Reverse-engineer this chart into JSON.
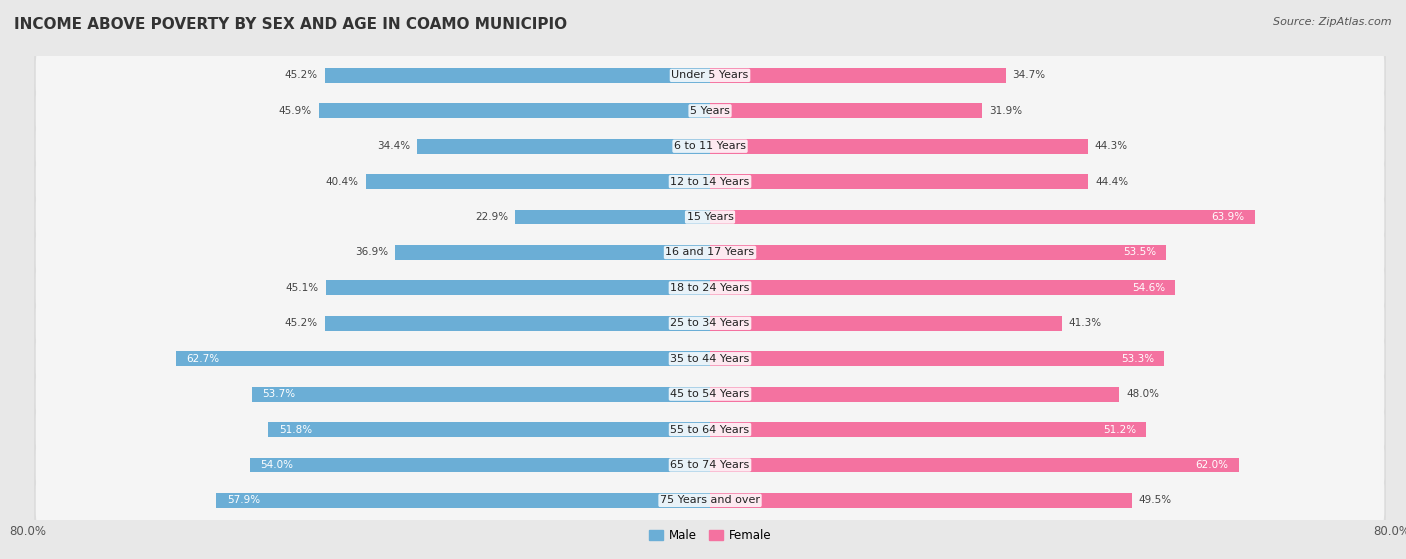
{
  "title": "INCOME ABOVE POVERTY BY SEX AND AGE IN COAMO MUNICIPIO",
  "source": "Source: ZipAtlas.com",
  "categories": [
    "Under 5 Years",
    "5 Years",
    "6 to 11 Years",
    "12 to 14 Years",
    "15 Years",
    "16 and 17 Years",
    "18 to 24 Years",
    "25 to 34 Years",
    "35 to 44 Years",
    "45 to 54 Years",
    "55 to 64 Years",
    "65 to 74 Years",
    "75 Years and over"
  ],
  "male_values": [
    45.2,
    45.9,
    34.4,
    40.4,
    22.9,
    36.9,
    45.1,
    45.2,
    62.7,
    53.7,
    51.8,
    54.0,
    57.9
  ],
  "female_values": [
    34.7,
    31.9,
    44.3,
    44.4,
    63.9,
    53.5,
    54.6,
    41.3,
    53.3,
    48.0,
    51.2,
    62.0,
    49.5
  ],
  "male_color": "#6BAED6",
  "female_color": "#F472A0",
  "male_label": "Male",
  "female_label": "Female",
  "axis_max": 80.0,
  "background_color": "#e8e8e8",
  "bar_background_top": "#f9f9f9",
  "bar_background_bottom": "#ececec",
  "title_fontsize": 11,
  "source_fontsize": 8,
  "label_fontsize": 8,
  "value_fontsize": 7.5,
  "tick_fontsize": 8.5,
  "male_inside_threshold": 50,
  "female_inside_threshold": 50
}
